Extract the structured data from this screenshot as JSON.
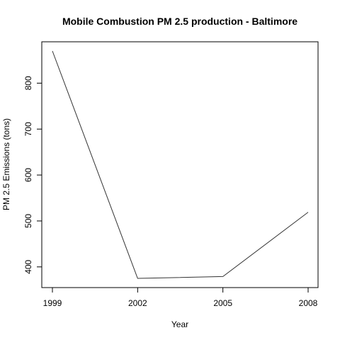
{
  "chart_data": {
    "type": "line",
    "title": "Mobile Combustion PM 2.5 production - Baltimore",
    "xlabel": "Year",
    "ylabel": "PM 2.5 Emissions (tons)",
    "x": [
      1999,
      2002,
      2005,
      2008
    ],
    "x_ticks": [
      "1999",
      "2002",
      "2005",
      "2008"
    ],
    "y_ticks": [
      "400",
      "500",
      "600",
      "700",
      "800"
    ],
    "series": [
      {
        "values": [
          870,
          375,
          379,
          519
        ]
      }
    ],
    "xlim": [
      1999,
      2008
    ],
    "ylim": [
      375,
      870
    ],
    "grid": false,
    "line_color": "#333333"
  }
}
